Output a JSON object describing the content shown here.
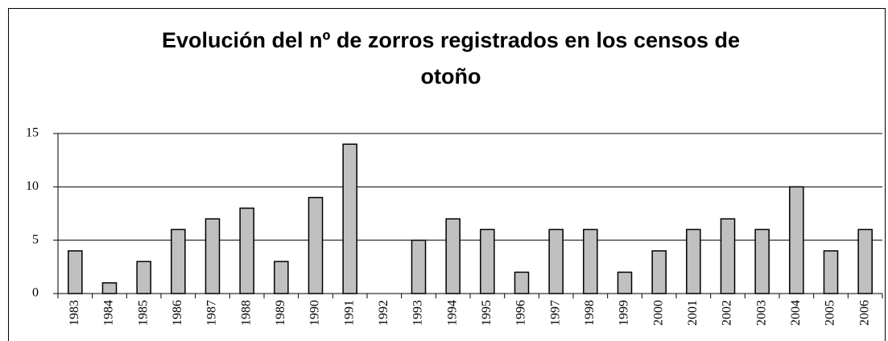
{
  "chart_data": {
    "type": "bar",
    "title": "Evolución del nº de zorros registrados en los censos de otoño",
    "categories": [
      "1983",
      "1984",
      "1985",
      "1986",
      "1987",
      "1988",
      "1989",
      "1990",
      "1991",
      "1992",
      "1993",
      "1994",
      "1995",
      "1996",
      "1997",
      "1998",
      "1999",
      "2000",
      "2001",
      "2002",
      "2003",
      "2004",
      "2005",
      "2006"
    ],
    "values": [
      4,
      1,
      3,
      6,
      7,
      8,
      3,
      9,
      14,
      0,
      5,
      7,
      6,
      2,
      6,
      6,
      2,
      4,
      6,
      7,
      6,
      10,
      4,
      6
    ],
    "color": "#c0c0c0",
    "ylim": [
      0,
      15
    ],
    "yticks": [
      0,
      5,
      10,
      15
    ],
    "grid": true
  }
}
